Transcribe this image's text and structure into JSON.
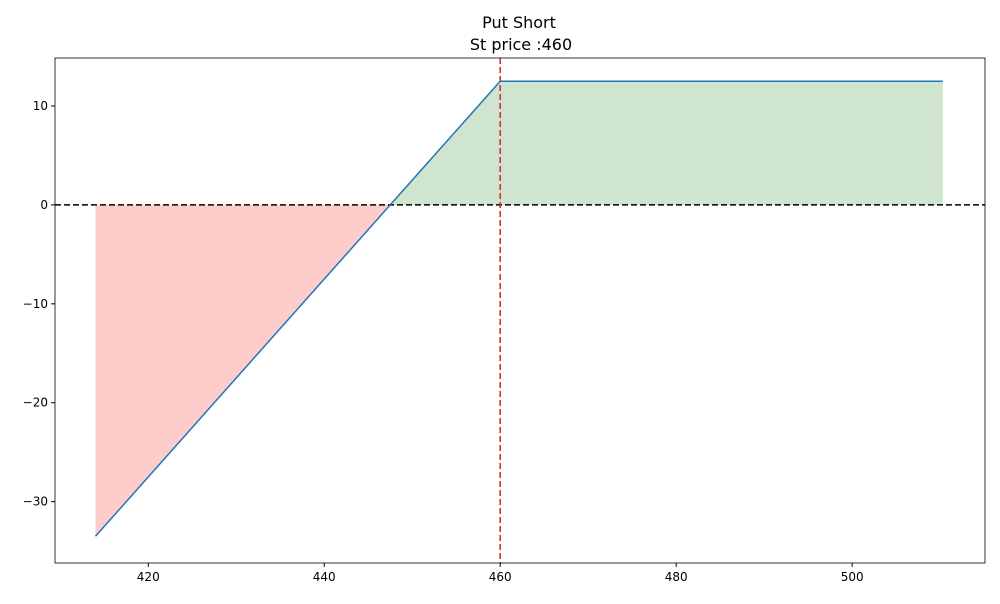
{
  "chart_data": {
    "type": "line",
    "title": "Put Short",
    "subtitle": "St price :460",
    "x": [
      414,
      460,
      510.3
    ],
    "series": [
      {
        "color": "#1f77b4",
        "values": [
          -33.5,
          12.5,
          12.5
        ]
      }
    ],
    "profit_color": "#cfe5cf",
    "loss_color": "#ffcccc",
    "hline": 0,
    "hline_color": "#000000",
    "vline": 460,
    "vline_color": "#d62728",
    "xlim": [
      409.4,
      515.1
    ],
    "ylim": [
      -36.2,
      14.85
    ],
    "xticks": [
      420,
      440,
      460,
      480,
      500
    ],
    "yticks": [
      {
        "value": -30,
        "label": "−30"
      },
      {
        "value": -20,
        "label": "−20"
      },
      {
        "value": -10,
        "label": "−10"
      },
      0,
      10
    ]
  }
}
